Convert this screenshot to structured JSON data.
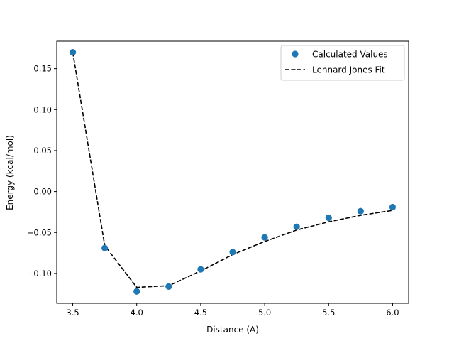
{
  "chart_data": {
    "type": "scatter",
    "xlabel": "Distance (A)",
    "ylabel": "Energy (kcal/mol)",
    "xlim": [
      3.375,
      6.125
    ],
    "ylim": [
      -0.1365,
      0.1835
    ],
    "x_ticks": [
      3.5,
      4.0,
      4.5,
      5.0,
      5.5,
      6.0
    ],
    "x_tick_labels": [
      "3.5",
      "4.0",
      "4.5",
      "5.0",
      "5.5",
      "6.0"
    ],
    "y_ticks": [
      -0.1,
      -0.05,
      0.0,
      0.05,
      0.1,
      0.15
    ],
    "y_tick_labels": [
      "−0.10",
      "−0.05",
      "0.00",
      "0.05",
      "0.10",
      "0.15"
    ],
    "grid": false,
    "legend_position": "top-right",
    "series": [
      {
        "name": "Calculated Values",
        "kind": "scatter",
        "color": "#1f77b4",
        "x": [
          3.5,
          3.75,
          4.0,
          4.25,
          4.5,
          4.75,
          5.0,
          5.25,
          5.5,
          5.75,
          6.0
        ],
        "y": [
          0.17,
          -0.069,
          -0.122,
          -0.116,
          -0.095,
          -0.074,
          -0.056,
          -0.043,
          -0.032,
          -0.024,
          -0.019
        ]
      },
      {
        "name": "Lennard Jones Fit",
        "kind": "line",
        "style": "dashed",
        "color": "#000000",
        "x": [
          3.5,
          3.75,
          4.0,
          4.25,
          4.5,
          4.75,
          5.0,
          5.25,
          5.5,
          5.75,
          6.0
        ],
        "y": [
          0.17,
          -0.066,
          -0.117,
          -0.115,
          -0.097,
          -0.077,
          -0.061,
          -0.047,
          -0.037,
          -0.029,
          -0.023
        ]
      }
    ]
  }
}
